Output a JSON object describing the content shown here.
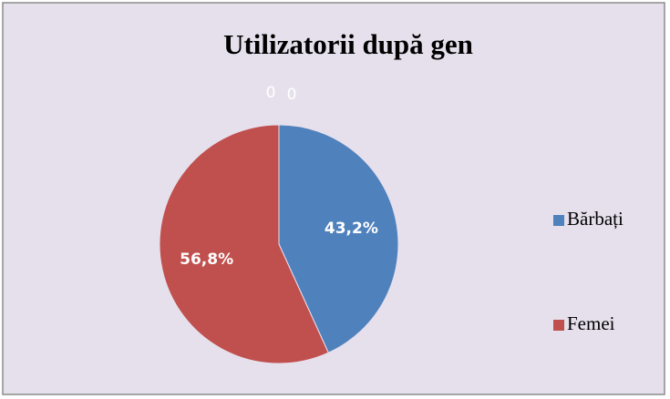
{
  "chart_data": {
    "type": "pie",
    "title": "Utilizatorii după gen",
    "categories": [
      "Bărbați",
      "Femei",
      null,
      null
    ],
    "values": [
      43.2,
      56.8,
      0,
      0
    ],
    "value_labels": [
      "43,2%",
      "56,8%",
      "0",
      "0"
    ],
    "colors": [
      "#4f81bd",
      "#c0504d",
      "#9bbb59",
      "#8064a2"
    ],
    "legend": "right"
  }
}
